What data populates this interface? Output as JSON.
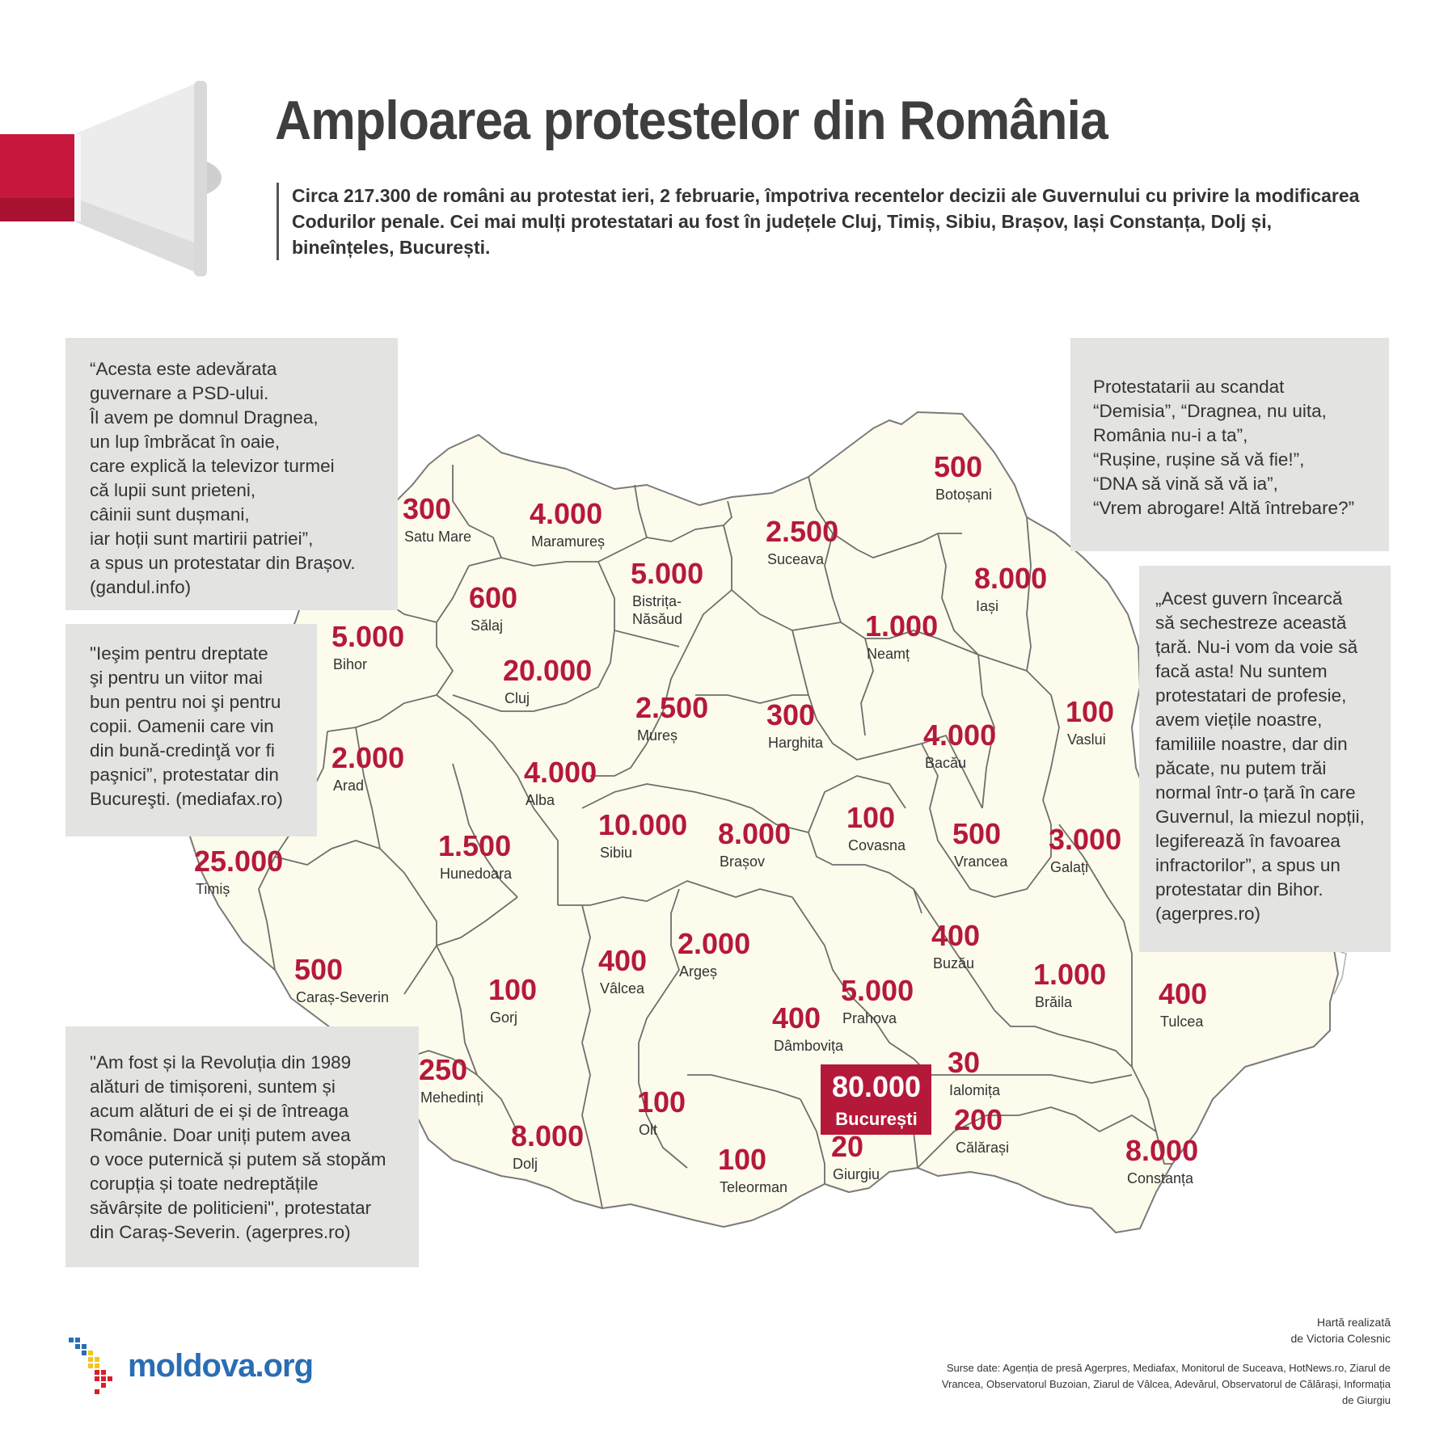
{
  "title": "Amploarea protestelor din România",
  "intro": "Circa 217.300 de români au protestat ieri, 2 februarie, împotriva recentelor decizii ale Guvernului cu privire la modificarea Codurilor penale. Cei mai mulți protestatari au fost în județele Cluj, Timiș, Sibiu, Brașov, Iași Constanța, Dolj și, bineînțeles, București.",
  "quotes": {
    "q1": "“Acesta este adevărata\nguvernare a PSD-ului.\nÎl avem pe domnul Dragnea,\nun lup îmbrăcat în oaie,\ncare explică la televizor turmei\ncă lupii sunt prieteni,\ncâinii sunt dușmani,\niar hoții sunt martirii patriei”,\na spus un protestatar din Brașov.\n(gandul.info)",
    "q2": "\"Ieşim pentru dreptate\nşi pentru un viitor mai\nbun pentru noi şi pentru\ncopii. Oamenii care vin\ndin bună-credinţă vor fi\npaşnici”, protestatar din\nBucureşti. (mediafax.ro)",
    "q3": "\"Am fost și la Revoluția din 1989\nalături de timișoreni, suntem și\nacum alături de ei și de întreaga\nRomânie. Doar uniți putem avea\no voce puternică și putem să stopăm\n corupția și toate nedreptățile\nsăvârșite de politicieni\", protestatar\ndin Caraș-Severin. (agerpres.ro)",
    "q4": "Protestatarii au scandat\n“Demisia”, “Dragnea, nu uita,\nRomânia nu-i a ta”,\n“Rușine, rușine să vă fie!”,\n“DNA să vină să vă ia”,\n“Vrem abrogare! Altă întrebare?”",
    "q5": "„Acest guvern încearcă\nsă sechestreze această\nțară. Nu-i vom da voie să\nfacă asta! Nu suntem\nprotestatari de profesie,\navem viețile noastre,\nfamiliile noastre, dar din\npăcate, nu putem trăi\nnormal într-o țară în care\nGuvernul, la miezul nopții,\n legiferează în favoarea\n infractorilor”, a spus un\nprotestatar din Bihor.\n(agerpres.ro)"
  },
  "counties": [
    {
      "name": "Satu Mare",
      "value": "300"
    },
    {
      "name": "Maramureș",
      "value": "4.000"
    },
    {
      "name": "Botoșani",
      "value": "500"
    },
    {
      "name": "Suceava",
      "value": "2.500"
    },
    {
      "name": "Bistrița-\nNăsăud",
      "value": "5.000"
    },
    {
      "name": "Sălaj",
      "value": "600"
    },
    {
      "name": "Iași",
      "value": "8.000"
    },
    {
      "name": "Neamț",
      "value": "1.000"
    },
    {
      "name": "Bihor",
      "value": "5.000"
    },
    {
      "name": "Cluj",
      "value": "20.000"
    },
    {
      "name": "Mureș",
      "value": "2.500"
    },
    {
      "name": "Harghita",
      "value": "300"
    },
    {
      "name": "Vaslui",
      "value": "100"
    },
    {
      "name": "Bacău",
      "value": "4.000"
    },
    {
      "name": "Arad",
      "value": "2.000"
    },
    {
      "name": "Alba",
      "value": "4.000"
    },
    {
      "name": "Sibiu",
      "value": "10.000"
    },
    {
      "name": "Brașov",
      "value": "8.000"
    },
    {
      "name": "Covasna",
      "value": "100"
    },
    {
      "name": "Vrancea",
      "value": "500"
    },
    {
      "name": "Galați",
      "value": "3.000"
    },
    {
      "name": "Timiș",
      "value": "25.000"
    },
    {
      "name": "Hunedoara",
      "value": "1.500"
    },
    {
      "name": "Argeș",
      "value": "2.000"
    },
    {
      "name": "Vâlcea",
      "value": "400"
    },
    {
      "name": "Buzău",
      "value": "400"
    },
    {
      "name": "Caraș-Severin",
      "value": "500"
    },
    {
      "name": "Gorj",
      "value": "100"
    },
    {
      "name": "Prahova",
      "value": "5.000"
    },
    {
      "name": "Brăila",
      "value": "1.000"
    },
    {
      "name": "Tulcea",
      "value": "400"
    },
    {
      "name": "Dâmbovița",
      "value": "400"
    },
    {
      "name": "Ialomița",
      "value": "30"
    },
    {
      "name": "Mehedinți",
      "value": "250"
    },
    {
      "name": "Olt",
      "value": "100"
    },
    {
      "name": "Dolj",
      "value": "8.000"
    },
    {
      "name": "Teleorman",
      "value": "100"
    },
    {
      "name": "Giurgiu",
      "value": "20"
    },
    {
      "name": "Călărași",
      "value": "200"
    },
    {
      "name": "Constanța",
      "value": "8.000"
    }
  ],
  "bucharest": {
    "name": "București",
    "value": "80.000"
  },
  "credit": "Hartă realizată\nde Victoria Colesnic",
  "sources": "Surse date: Agenția de presă Agerpres, Mediafax, Monitorul de Suceava, HotNews.ro, Ziarul de Vrancea, Observatorul Buzoian, Ziarul de Vâlcea, Adevărul, Observatorul de Călărași, Informația de Giurgiu",
  "logo_text": "moldova.org",
  "colors": {
    "accent": "#b5193a",
    "map_fill": "#fdfcec",
    "quote_bg": "#e3e3e2",
    "megaphone_red": "#c8173d"
  }
}
